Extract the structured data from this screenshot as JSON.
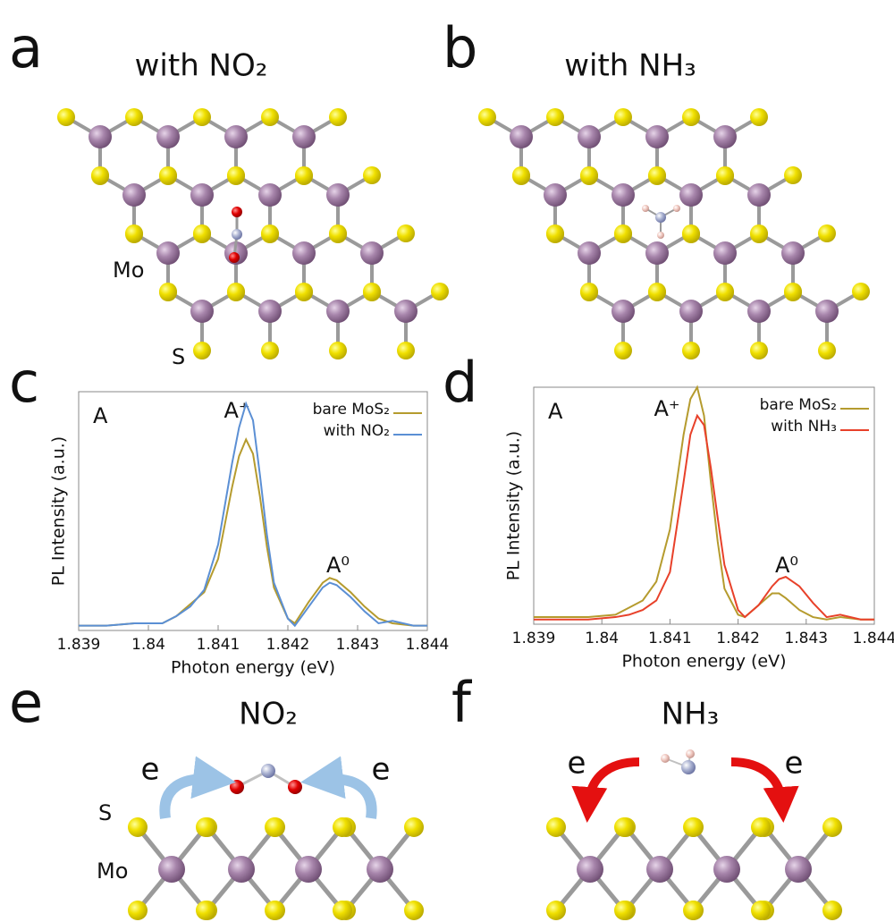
{
  "panels": {
    "a": {
      "label": "a",
      "title": "with NO₂",
      "mo": "Mo",
      "s": "S"
    },
    "b": {
      "label": "b",
      "title": "with NH₃"
    },
    "c": {
      "label": "c"
    },
    "d": {
      "label": "d"
    },
    "e": {
      "label": "e",
      "molecule": "NO₂",
      "e_left": "e",
      "e_right": "e",
      "s": "S",
      "mo": "Mo"
    },
    "f": {
      "label": "f",
      "molecule": "NH₃",
      "e_left": "e",
      "e_right": "e"
    }
  },
  "chart_data": [
    {
      "type": "line",
      "corner_label": "A",
      "annotations": [
        "A⁺",
        "A⁰"
      ],
      "xlabel": "Photon energy (eV)",
      "ylabel": "PL Intensity (a.u.)",
      "xlim": [
        1.839,
        1.844
      ],
      "xticks": [
        1.839,
        1.84,
        1.841,
        1.842,
        1.843,
        1.844
      ],
      "ylim": [
        0,
        100
      ],
      "legend": "upper right",
      "x": [
        1.839,
        1.8394,
        1.8398,
        1.8402,
        1.8404,
        1.8406,
        1.8408,
        1.841,
        1.8412,
        1.8413,
        1.8414,
        1.8415,
        1.8416,
        1.8417,
        1.8418,
        1.842,
        1.8421,
        1.8423,
        1.8425,
        1.8426,
        1.8427,
        1.8429,
        1.8431,
        1.8433,
        1.8435,
        1.8438,
        1.844
      ],
      "series": [
        {
          "name": "bare MoS₂",
          "color": "#b59b2e",
          "values": [
            2,
            2,
            3,
            3,
            6,
            11,
            16,
            30,
            60,
            73,
            80,
            74,
            56,
            35,
            18,
            5,
            3,
            12,
            20,
            22,
            21,
            16,
            10,
            5,
            3,
            2,
            2
          ]
        },
        {
          "name": "with NO₂",
          "color": "#5b8fd4",
          "values": [
            2,
            2,
            3,
            3,
            6,
            10,
            17,
            36,
            70,
            85,
            95,
            88,
            65,
            40,
            20,
            5,
            2,
            10,
            18,
            20,
            19,
            14,
            8,
            3,
            4,
            2,
            2
          ]
        }
      ]
    },
    {
      "type": "line",
      "corner_label": "A",
      "annotations": [
        "A⁺",
        "A⁰"
      ],
      "xlabel": "Photon energy (eV)",
      "ylabel": "PL Intensity (a.u.)",
      "xlim": [
        1.839,
        1.844
      ],
      "xticks": [
        1.839,
        1.84,
        1.841,
        1.842,
        1.843,
        1.844
      ],
      "ylim": [
        0,
        100
      ],
      "legend": "upper right",
      "x": [
        1.839,
        1.8394,
        1.8398,
        1.8402,
        1.8404,
        1.8406,
        1.8408,
        1.841,
        1.8412,
        1.8413,
        1.8414,
        1.8415,
        1.8416,
        1.8417,
        1.8418,
        1.842,
        1.8421,
        1.8423,
        1.8425,
        1.8426,
        1.8427,
        1.8429,
        1.8431,
        1.8433,
        1.8435,
        1.8438,
        1.844
      ],
      "series": [
        {
          "name": "bare MoS₂",
          "color": "#b59b2e",
          "values": [
            3,
            3,
            3,
            4,
            7,
            10,
            18,
            40,
            80,
            95,
            100,
            88,
            60,
            35,
            15,
            4,
            3,
            8,
            13,
            13,
            11,
            6,
            3,
            2,
            3,
            2,
            2
          ]
        },
        {
          "name": "with NH₃",
          "color": "#e8412a",
          "values": [
            2,
            2,
            2,
            3,
            4,
            6,
            10,
            22,
            60,
            80,
            88,
            84,
            66,
            45,
            25,
            6,
            3,
            8,
            16,
            19,
            20,
            16,
            9,
            3,
            4,
            2,
            2
          ]
        }
      ]
    }
  ]
}
